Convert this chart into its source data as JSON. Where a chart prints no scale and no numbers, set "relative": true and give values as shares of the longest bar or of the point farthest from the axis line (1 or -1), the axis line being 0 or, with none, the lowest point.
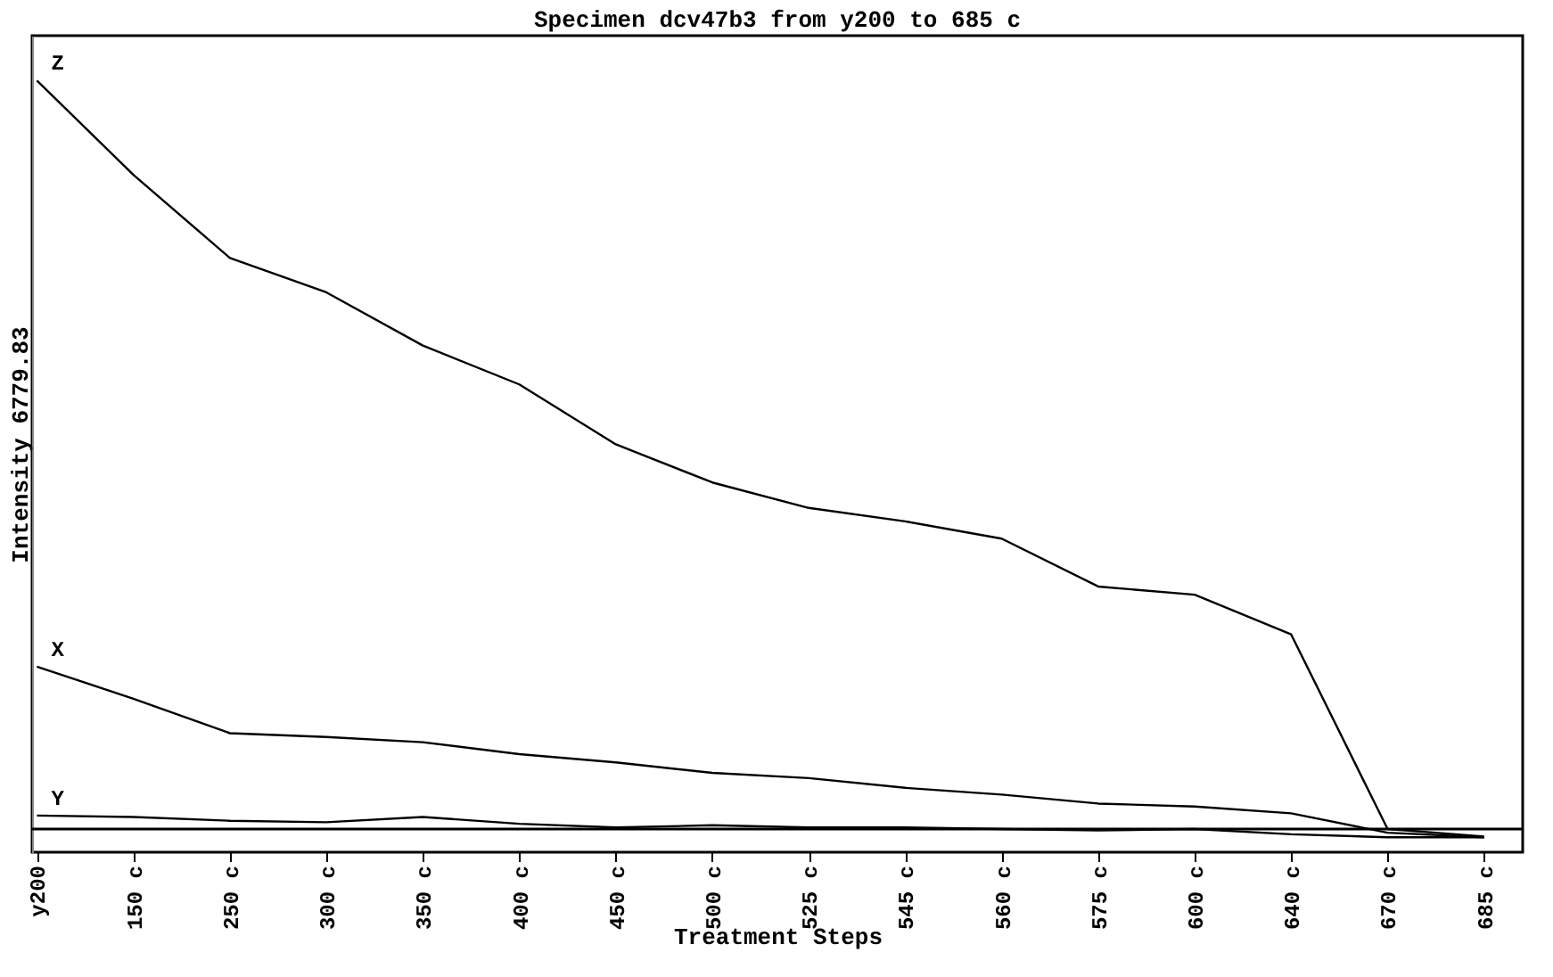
{
  "chart_data": {
    "type": "line",
    "title": "Specimen dcv47b3 from y200 to 685 c",
    "xlabel": "Treatment Steps",
    "ylabel": "Intensity 6779.83",
    "relative": true,
    "tick_labels": "x",
    "marker": "none",
    "line_style": "solid",
    "grid": false,
    "legend": false,
    "categories": [
      "y200",
      "150 c",
      "250 c",
      "300 c",
      "350 c",
      "400 c",
      "450 c",
      "500 c",
      "525 c",
      "545 c",
      "560 c",
      "575 c",
      "600 c",
      "640 c",
      "670 c",
      "685 c"
    ],
    "series": [
      {
        "name": "Z",
        "color": "#000000",
        "values": [
          1.0,
          0.874,
          0.763,
          0.717,
          0.646,
          0.594,
          0.514,
          0.463,
          0.429,
          0.411,
          0.388,
          0.324,
          0.313,
          0.26,
          0.0,
          -0.01
        ]
      },
      {
        "name": "X",
        "color": "#000000",
        "values": [
          0.217,
          0.174,
          0.128,
          0.123,
          0.116,
          0.1,
          0.089,
          0.075,
          0.068,
          0.055,
          0.046,
          0.034,
          0.03,
          0.021,
          -0.005,
          -0.011
        ]
      },
      {
        "name": "Y",
        "color": "#000000",
        "values": [
          0.018,
          0.016,
          0.011,
          0.009,
          0.016,
          0.007,
          0.002,
          0.005,
          0.002,
          0.002,
          0.0,
          -0.002,
          0.0,
          -0.007,
          -0.011,
          -0.011
        ]
      }
    ]
  }
}
